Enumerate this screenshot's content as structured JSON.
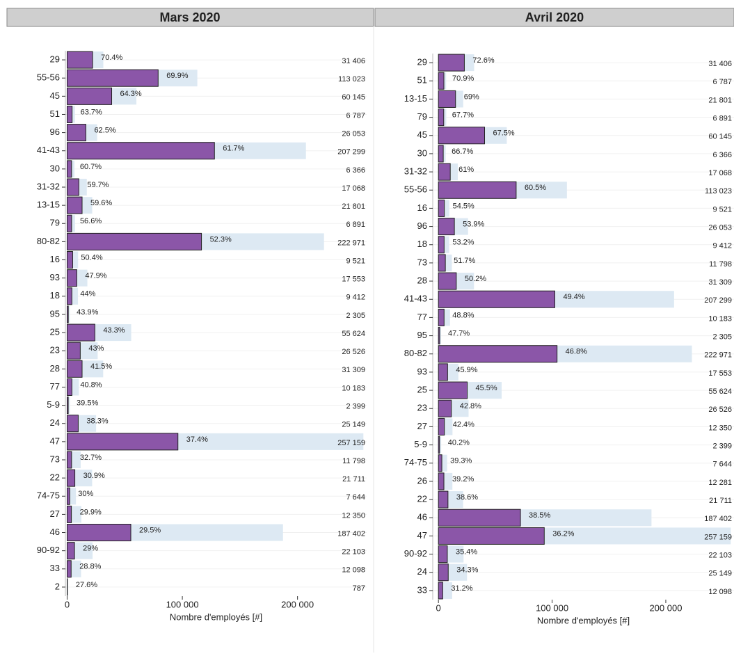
{
  "chart_data": [
    {
      "type": "bar",
      "orientation": "horizontal",
      "title": "Mars 2020",
      "x_label": "Nombre d'employés [#]",
      "categories": [
        "29",
        "55-56",
        "45",
        "51",
        "96",
        "41-43",
        "30",
        "31-32",
        "13-15",
        "79",
        "80-82",
        "16",
        "93",
        "18",
        "95",
        "25",
        "23",
        "28",
        "77",
        "5-9",
        "24",
        "47",
        "73",
        "22",
        "74-75",
        "27",
        "46",
        "90-92",
        "33",
        "2"
      ],
      "series": [
        {
          "color": "#dde9f3",
          "values": [
            31406,
            113023,
            60145,
            6787,
            26053,
            207299,
            6366,
            17068,
            21801,
            6891,
            222971,
            9521,
            17553,
            9412,
            2305,
            55624,
            26526,
            31309,
            10183,
            2399,
            25149,
            257159,
            11798,
            21711,
            7644,
            12350,
            187402,
            22103,
            12098,
            787
          ],
          "value_labels": [
            "31 406",
            "113 023",
            "60 145",
            "6 787",
            "26 053",
            "207 299",
            "6 366",
            "17 068",
            "21 801",
            "6 891",
            "222 971",
            "9 521",
            "17 553",
            "9 412",
            "2 305",
            "55 624",
            "26 526",
            "31 309",
            "10 183",
            "2 399",
            "25 149",
            "257 159",
            "11 798",
            "21 711",
            "7 644",
            "12 350",
            "187 402",
            "22 103",
            "12 098",
            "787"
          ]
        },
        {
          "color": "#8b56a8",
          "values": [
            70.4,
            69.9,
            64.3,
            63.7,
            62.5,
            61.7,
            60.7,
            59.7,
            59.6,
            56.6,
            52.3,
            50.4,
            47.9,
            44,
            43.9,
            43.3,
            43,
            41.5,
            40.8,
            39.5,
            38.3,
            37.4,
            32.7,
            30.9,
            30,
            29.9,
            29.5,
            29,
            28.8,
            27.6
          ],
          "value_labels": [
            "70.4%",
            "69.9%",
            "64.3%",
            "63.7%",
            "62.5%",
            "61.7%",
            "60.7%",
            "59.7%",
            "59.6%",
            "56.6%",
            "52.3%",
            "50.4%",
            "47.9%",
            "44%",
            "43.9%",
            "43.3%",
            "43%",
            "41.5%",
            "40.8%",
            "39.5%",
            "38.3%",
            "37.4%",
            "32.7%",
            "30.9%",
            "30%",
            "29.9%",
            "29.5%",
            "29%",
            "28.8%",
            "27.6%"
          ]
        }
      ],
      "xlim": [
        -1500,
        260000
      ],
      "xticks": [
        0,
        {
          "value": 100000,
          "label": "100 000"
        },
        {
          "value": 200000,
          "label": "200 000"
        }
      ],
      "grid": true
    },
    {
      "type": "bar",
      "orientation": "horizontal",
      "title": "Avril 2020",
      "x_label": "Nombre d'employés [#]",
      "categories": [
        "29",
        "51",
        "13-15",
        "79",
        "45",
        "30",
        "31-32",
        "55-56",
        "16",
        "96",
        "18",
        "73",
        "28",
        "41-43",
        "77",
        "95",
        "80-82",
        "93",
        "25",
        "23",
        "27",
        "5-9",
        "74-75",
        "26",
        "22",
        "46",
        "47",
        "90-92",
        "24",
        "33"
      ],
      "series": [
        {
          "color": "#dde9f3",
          "values": [
            31406,
            6787,
            21801,
            6891,
            60145,
            6366,
            17068,
            113023,
            9521,
            26053,
            9412,
            11798,
            31309,
            207299,
            10183,
            2305,
            222971,
            17553,
            55624,
            26526,
            12350,
            2399,
            7644,
            12281,
            21711,
            187402,
            257159,
            22103,
            25149,
            12098
          ],
          "value_labels": [
            "31 406",
            "6 787",
            "21 801",
            "6 891",
            "60 145",
            "6 366",
            "17 068",
            "113 023",
            "9 521",
            "26 053",
            "9 412",
            "11 798",
            "31 309",
            "207 299",
            "10 183",
            "2 305",
            "222 971",
            "17 553",
            "55 624",
            "26 526",
            "12 350",
            "2 399",
            "7 644",
            "12 281",
            "21 711",
            "187 402",
            "257 159",
            "22 103",
            "25 149",
            "12 098"
          ]
        },
        {
          "color": "#8b56a8",
          "values": [
            72.6,
            70.9,
            69,
            67.7,
            67.5,
            66.7,
            61,
            60.5,
            54.5,
            53.9,
            53.2,
            51.7,
            50.2,
            49.4,
            48.8,
            47.7,
            46.8,
            45.9,
            45.5,
            42.8,
            42.4,
            40.2,
            39.3,
            39.2,
            38.6,
            38.5,
            36.2,
            35.4,
            34.3,
            31.2
          ],
          "value_labels": [
            "72.6%",
            "70.9%",
            "69%",
            "67.7%",
            "67.5%",
            "66.7%",
            "61%",
            "60.5%",
            "54.5%",
            "53.9%",
            "53.2%",
            "51.7%",
            "50.2%",
            "49.4%",
            "48.8%",
            "47.7%",
            "46.8%",
            "45.9%",
            "45.5%",
            "42.8%",
            "42.4%",
            "40.2%",
            "39.3%",
            "39.2%",
            "38.6%",
            "38.5%",
            "36.2%",
            "35.4%",
            "34.3%",
            "31.2%"
          ]
        }
      ],
      "xlim": [
        -5000,
        260000
      ],
      "xticks": [
        0,
        {
          "value": 100000,
          "label": "100 000"
        },
        {
          "value": 200000,
          "label": "200 000"
        }
      ],
      "grid": true
    }
  ]
}
